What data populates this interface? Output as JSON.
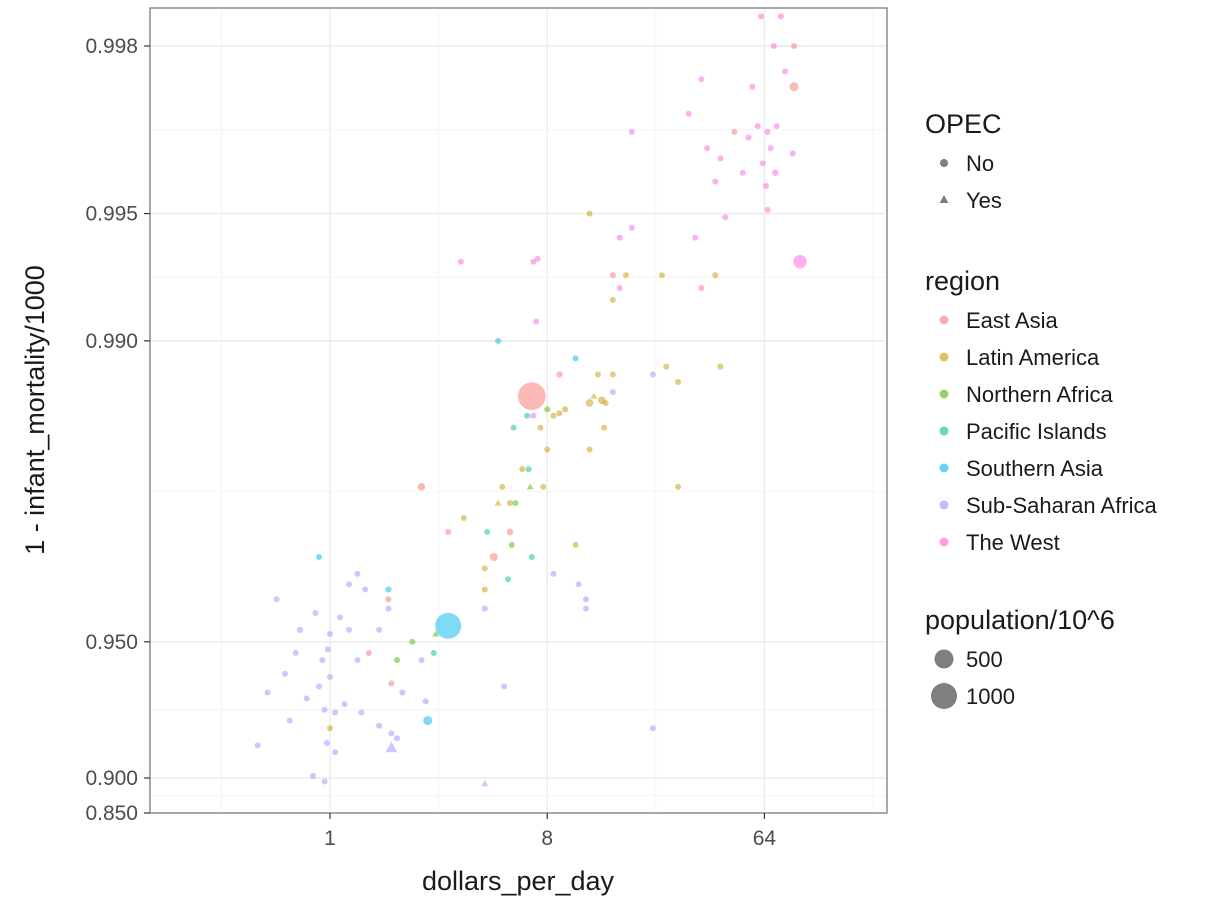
{
  "chart_data": {
    "type": "scatter",
    "title": "",
    "xlabel": "dollars_per_day",
    "ylabel": "1 - infant_mortality/1000",
    "x_scale": "log2",
    "y_scale": "logit",
    "xlim": [
      0.3,
      140
    ],
    "ylim": [
      0.85,
      0.9987
    ],
    "x_ticks": [
      1,
      8,
      64
    ],
    "x_tick_labels": [
      "1",
      "8",
      "64"
    ],
    "y_ticks": [
      0.85,
      0.9,
      0.95,
      0.99,
      0.995,
      0.998
    ],
    "y_tick_labels": [
      "0.850",
      "0.900",
      "0.950",
      "0.990",
      "0.995",
      "0.998"
    ],
    "grid": true,
    "legend_position": "right",
    "legends": {
      "shape": {
        "title": "OPEC",
        "items": [
          "No",
          "Yes"
        ]
      },
      "color": {
        "title": "region",
        "items": [
          {
            "name": "East Asia",
            "color": "#F8766D"
          },
          {
            "name": "Latin America",
            "color": "#C49A00"
          },
          {
            "name": "Northern Africa",
            "color": "#53B400"
          },
          {
            "name": "Pacific Islands",
            "color": "#00C094"
          },
          {
            "name": "Southern Asia",
            "color": "#00B6EB"
          },
          {
            "name": "Sub-Saharan Africa",
            "color": "#A58AFF"
          },
          {
            "name": "The West",
            "color": "#FB61D7"
          }
        ]
      },
      "size": {
        "title": "population/10^6",
        "items": [
          500,
          1000
        ]
      }
    },
    "series": [
      {
        "name": "East Asia",
        "points": [
          {
            "x": 6.9,
            "y": 0.9865,
            "pop": 1200,
            "opec": "No"
          },
          {
            "x": 9.0,
            "y": 0.988,
            "pop": 60,
            "opec": "No"
          },
          {
            "x": 15.0,
            "y": 0.993,
            "pop": 50,
            "opec": "No"
          },
          {
            "x": 48.0,
            "y": 0.9968,
            "pop": 45,
            "opec": "No"
          },
          {
            "x": 85.0,
            "y": 0.9975,
            "pop": 125,
            "opec": "No"
          },
          {
            "x": 2.4,
            "y": 0.978,
            "pop": 90,
            "opec": "No"
          },
          {
            "x": 4.8,
            "y": 0.968,
            "pop": 100,
            "opec": "No"
          },
          {
            "x": 5.6,
            "y": 0.972,
            "pop": 65,
            "opec": "No"
          },
          {
            "x": 3.1,
            "y": 0.972,
            "pop": 20,
            "opec": "No"
          },
          {
            "x": 1.75,
            "y": 0.96,
            "pop": 20,
            "opec": "No"
          },
          {
            "x": 1.45,
            "y": 0.947,
            "pop": 20,
            "opec": "No"
          },
          {
            "x": 1.8,
            "y": 0.938,
            "pop": 20,
            "opec": "No"
          },
          {
            "x": 35.0,
            "y": 0.9925,
            "pop": 20,
            "opec": "No"
          },
          {
            "x": 70.0,
            "y": 0.9985,
            "pop": 20,
            "opec": "No"
          },
          {
            "x": 85.0,
            "y": 0.998,
            "pop": 20,
            "opec": "No"
          },
          {
            "x": 62.0,
            "y": 0.9983,
            "pop": 20,
            "opec": "No"
          }
        ]
      },
      {
        "name": "Latin America",
        "points": [
          {
            "x": 12.0,
            "y": 0.986,
            "pop": 90,
            "opec": "No"
          },
          {
            "x": 13.5,
            "y": 0.9862,
            "pop": 90,
            "opec": "No"
          },
          {
            "x": 8.5,
            "y": 0.985,
            "pop": 60,
            "opec": "No"
          },
          {
            "x": 9.0,
            "y": 0.9852,
            "pop": 20,
            "opec": "No"
          },
          {
            "x": 12.5,
            "y": 0.9865,
            "pop": 20,
            "opec": "Yes"
          },
          {
            "x": 14.0,
            "y": 0.986,
            "pop": 20,
            "opec": "No"
          },
          {
            "x": 13.8,
            "y": 0.984,
            "pop": 20,
            "opec": "No"
          },
          {
            "x": 7.5,
            "y": 0.984,
            "pop": 20,
            "opec": "No"
          },
          {
            "x": 9.5,
            "y": 0.9855,
            "pop": 20,
            "opec": "No"
          },
          {
            "x": 12.0,
            "y": 0.982,
            "pop": 20,
            "opec": "No"
          },
          {
            "x": 28.0,
            "y": 0.9875,
            "pop": 20,
            "opec": "No"
          },
          {
            "x": 25.0,
            "y": 0.9885,
            "pop": 20,
            "opec": "No"
          },
          {
            "x": 13.0,
            "y": 0.988,
            "pop": 20,
            "opec": "No"
          },
          {
            "x": 6.3,
            "y": 0.98,
            "pop": 20,
            "opec": "No"
          },
          {
            "x": 7.7,
            "y": 0.978,
            "pop": 20,
            "opec": "No"
          },
          {
            "x": 5.6,
            "y": 0.976,
            "pop": 20,
            "opec": "No"
          },
          {
            "x": 5.0,
            "y": 0.976,
            "pop": 20,
            "opec": "Yes"
          },
          {
            "x": 3.6,
            "y": 0.974,
            "pop": 20,
            "opec": "No"
          },
          {
            "x": 5.2,
            "y": 0.978,
            "pop": 20,
            "opec": "No"
          },
          {
            "x": 10.5,
            "y": 0.97,
            "pop": 20,
            "opec": "No"
          },
          {
            "x": 4.4,
            "y": 0.966,
            "pop": 20,
            "opec": "No"
          },
          {
            "x": 4.4,
            "y": 0.962,
            "pop": 20,
            "opec": "No"
          },
          {
            "x": 28.0,
            "y": 0.978,
            "pop": 20,
            "opec": "No"
          },
          {
            "x": 1.0,
            "y": 0.922,
            "pop": 20,
            "opec": "No"
          },
          {
            "x": 12.0,
            "y": 0.995,
            "pop": 20,
            "opec": "No"
          },
          {
            "x": 17.0,
            "y": 0.993,
            "pop": 20,
            "opec": "No"
          },
          {
            "x": 24.0,
            "y": 0.993,
            "pop": 20,
            "opec": "No"
          },
          {
            "x": 15.0,
            "y": 0.992,
            "pop": 20,
            "opec": "No"
          },
          {
            "x": 15.0,
            "y": 0.988,
            "pop": 20,
            "opec": "No"
          },
          {
            "x": 40.0,
            "y": 0.993,
            "pop": 20,
            "opec": "No"
          },
          {
            "x": 42.0,
            "y": 0.9885,
            "pop": 20,
            "opec": "No"
          },
          {
            "x": 8.0,
            "y": 0.982,
            "pop": 20,
            "opec": "No"
          }
        ]
      },
      {
        "name": "Northern Africa",
        "points": [
          {
            "x": 8.0,
            "y": 0.9855,
            "pop": 20,
            "opec": "No"
          },
          {
            "x": 5.9,
            "y": 0.976,
            "pop": 60,
            "opec": "No"
          },
          {
            "x": 6.8,
            "y": 0.978,
            "pop": 20,
            "opec": "Yes"
          },
          {
            "x": 5.7,
            "y": 0.97,
            "pop": 45,
            "opec": "No"
          },
          {
            "x": 2.2,
            "y": 0.95,
            "pop": 30,
            "opec": "No"
          },
          {
            "x": 1.9,
            "y": 0.945,
            "pop": 30,
            "opec": "No"
          },
          {
            "x": 2.75,
            "y": 0.952,
            "pop": 20,
            "opec": "Yes"
          }
        ]
      },
      {
        "name": "Pacific Islands",
        "points": [
          {
            "x": 5.8,
            "y": 0.984,
            "pop": 20,
            "opec": "No"
          },
          {
            "x": 6.6,
            "y": 0.985,
            "pop": 20,
            "opec": "No"
          },
          {
            "x": 6.7,
            "y": 0.98,
            "pop": 20,
            "opec": "No"
          },
          {
            "x": 6.9,
            "y": 0.968,
            "pop": 20,
            "opec": "No"
          },
          {
            "x": 4.5,
            "y": 0.972,
            "pop": 20,
            "opec": "No"
          },
          {
            "x": 5.5,
            "y": 0.964,
            "pop": 20,
            "opec": "No"
          },
          {
            "x": 2.7,
            "y": 0.947,
            "pop": 20,
            "opec": "No"
          }
        ]
      },
      {
        "name": "Southern Asia",
        "points": [
          {
            "x": 3.1,
            "y": 0.954,
            "pop": 1050,
            "opec": "No"
          },
          {
            "x": 1.75,
            "y": 0.962,
            "pop": 60,
            "opec": "No"
          },
          {
            "x": 2.55,
            "y": 0.925,
            "pop": 130,
            "opec": "No"
          },
          {
            "x": 0.9,
            "y": 0.968,
            "pop": 25,
            "opec": "No"
          },
          {
            "x": 5.0,
            "y": 0.99,
            "pop": 20,
            "opec": "No"
          },
          {
            "x": 10.5,
            "y": 0.989,
            "pop": 20,
            "opec": "No"
          }
        ]
      },
      {
        "name": "Sub-Saharan Africa",
        "points": [
          {
            "x": 0.5,
            "y": 0.915,
            "pop": 50,
            "opec": "No"
          },
          {
            "x": 0.55,
            "y": 0.935,
            "pop": 20,
            "opec": "No"
          },
          {
            "x": 0.6,
            "y": 0.96,
            "pop": 20,
            "opec": "No"
          },
          {
            "x": 0.65,
            "y": 0.941,
            "pop": 20,
            "opec": "No"
          },
          {
            "x": 0.68,
            "y": 0.925,
            "pop": 20,
            "opec": "No"
          },
          {
            "x": 0.72,
            "y": 0.947,
            "pop": 20,
            "opec": "No"
          },
          {
            "x": 0.75,
            "y": 0.953,
            "pop": 60,
            "opec": "No"
          },
          {
            "x": 0.8,
            "y": 0.933,
            "pop": 20,
            "opec": "No"
          },
          {
            "x": 0.85,
            "y": 0.901,
            "pop": 20,
            "opec": "No"
          },
          {
            "x": 0.87,
            "y": 0.957,
            "pop": 20,
            "opec": "No"
          },
          {
            "x": 0.9,
            "y": 0.937,
            "pop": 20,
            "opec": "No"
          },
          {
            "x": 0.93,
            "y": 0.945,
            "pop": 20,
            "opec": "No"
          },
          {
            "x": 0.95,
            "y": 0.929,
            "pop": 20,
            "opec": "No"
          },
          {
            "x": 0.95,
            "y": 0.895,
            "pop": 20,
            "opec": "No"
          },
          {
            "x": 0.97,
            "y": 0.916,
            "pop": 20,
            "opec": "No"
          },
          {
            "x": 0.98,
            "y": 0.948,
            "pop": 20,
            "opec": "No"
          },
          {
            "x": 1.0,
            "y": 0.952,
            "pop": 20,
            "opec": "No"
          },
          {
            "x": 1.0,
            "y": 0.94,
            "pop": 20,
            "opec": "No"
          },
          {
            "x": 1.05,
            "y": 0.928,
            "pop": 20,
            "opec": "No"
          },
          {
            "x": 1.05,
            "y": 0.912,
            "pop": 20,
            "opec": "No"
          },
          {
            "x": 1.1,
            "y": 0.956,
            "pop": 20,
            "opec": "No"
          },
          {
            "x": 1.15,
            "y": 0.931,
            "pop": 20,
            "opec": "No"
          },
          {
            "x": 1.2,
            "y": 0.963,
            "pop": 20,
            "opec": "No"
          },
          {
            "x": 1.3,
            "y": 0.965,
            "pop": 35,
            "opec": "No"
          },
          {
            "x": 1.4,
            "y": 0.962,
            "pop": 35,
            "opec": "No"
          },
          {
            "x": 1.2,
            "y": 0.953,
            "pop": 20,
            "opec": "No"
          },
          {
            "x": 1.3,
            "y": 0.945,
            "pop": 20,
            "opec": "No"
          },
          {
            "x": 1.35,
            "y": 0.928,
            "pop": 20,
            "opec": "No"
          },
          {
            "x": 1.6,
            "y": 0.923,
            "pop": 20,
            "opec": "No"
          },
          {
            "x": 1.6,
            "y": 0.953,
            "pop": 20,
            "opec": "No"
          },
          {
            "x": 1.75,
            "y": 0.958,
            "pop": 20,
            "opec": "No"
          },
          {
            "x": 1.8,
            "y": 0.92,
            "pop": 20,
            "opec": "No"
          },
          {
            "x": 1.8,
            "y": 0.914,
            "pop": 170,
            "opec": "Yes"
          },
          {
            "x": 1.9,
            "y": 0.918,
            "pop": 20,
            "opec": "No"
          },
          {
            "x": 2.0,
            "y": 0.935,
            "pop": 20,
            "opec": "No"
          },
          {
            "x": 2.5,
            "y": 0.932,
            "pop": 20,
            "opec": "No"
          },
          {
            "x": 2.4,
            "y": 0.945,
            "pop": 20,
            "opec": "No"
          },
          {
            "x": 4.4,
            "y": 0.958,
            "pop": 20,
            "opec": "No"
          },
          {
            "x": 4.4,
            "y": 0.892,
            "pop": 20,
            "opec": "Yes"
          },
          {
            "x": 5.3,
            "y": 0.937,
            "pop": 20,
            "opec": "No"
          },
          {
            "x": 8.5,
            "y": 0.965,
            "pop": 20,
            "opec": "No"
          },
          {
            "x": 10.8,
            "y": 0.963,
            "pop": 40,
            "opec": "No"
          },
          {
            "x": 11.6,
            "y": 0.96,
            "pop": 20,
            "opec": "No"
          },
          {
            "x": 11.6,
            "y": 0.958,
            "pop": 20,
            "opec": "No"
          },
          {
            "x": 22.0,
            "y": 0.922,
            "pop": 20,
            "opec": "No"
          },
          {
            "x": 22.0,
            "y": 0.988,
            "pop": 20,
            "opec": "No"
          },
          {
            "x": 15.0,
            "y": 0.9868,
            "pop": 20,
            "opec": "No"
          }
        ]
      },
      {
        "name": "The West",
        "points": [
          {
            "x": 90.0,
            "y": 0.9935,
            "pop": 280,
            "opec": "No"
          },
          {
            "x": 60.0,
            "y": 0.9969,
            "pop": 20,
            "opec": "No"
          },
          {
            "x": 66.0,
            "y": 0.9968,
            "pop": 60,
            "opec": "No"
          },
          {
            "x": 63.0,
            "y": 0.9962,
            "pop": 20,
            "opec": "No"
          },
          {
            "x": 68.0,
            "y": 0.9965,
            "pop": 20,
            "opec": "No"
          },
          {
            "x": 71.0,
            "y": 0.996,
            "pop": 65,
            "opec": "No"
          },
          {
            "x": 65.0,
            "y": 0.9957,
            "pop": 20,
            "opec": "No"
          },
          {
            "x": 66.0,
            "y": 0.9951,
            "pop": 40,
            "opec": "No"
          },
          {
            "x": 52.0,
            "y": 0.996,
            "pop": 20,
            "opec": "No"
          },
          {
            "x": 37.0,
            "y": 0.9965,
            "pop": 20,
            "opec": "No"
          },
          {
            "x": 40.0,
            "y": 0.9958,
            "pop": 20,
            "opec": "No"
          },
          {
            "x": 42.0,
            "y": 0.9963,
            "pop": 40,
            "opec": "No"
          },
          {
            "x": 44.0,
            "y": 0.9949,
            "pop": 20,
            "opec": "No"
          },
          {
            "x": 31.0,
            "y": 0.9971,
            "pop": 20,
            "opec": "No"
          },
          {
            "x": 35.0,
            "y": 0.9976,
            "pop": 20,
            "opec": "No"
          },
          {
            "x": 55.0,
            "y": 0.9967,
            "pop": 20,
            "opec": "No"
          },
          {
            "x": 57.0,
            "y": 0.9975,
            "pop": 20,
            "opec": "No"
          },
          {
            "x": 84.0,
            "y": 0.9964,
            "pop": 20,
            "opec": "No"
          },
          {
            "x": 78.0,
            "y": 0.9977,
            "pop": 20,
            "opec": "No"
          },
          {
            "x": 72.0,
            "y": 0.9969,
            "pop": 20,
            "opec": "No"
          },
          {
            "x": 70.0,
            "y": 0.998,
            "pop": 20,
            "opec": "No"
          },
          {
            "x": 75.0,
            "y": 0.9983,
            "pop": 20,
            "opec": "No"
          },
          {
            "x": 100.0,
            "y": 0.9986,
            "pop": 20,
            "opec": "No"
          },
          {
            "x": 33.0,
            "y": 0.9943,
            "pop": 20,
            "opec": "No"
          },
          {
            "x": 16.0,
            "y": 0.9943,
            "pop": 20,
            "opec": "No"
          },
          {
            "x": 18.0,
            "y": 0.9946,
            "pop": 20,
            "opec": "No"
          },
          {
            "x": 18.0,
            "y": 0.9968,
            "pop": 20,
            "opec": "No"
          },
          {
            "x": 16.0,
            "y": 0.9925,
            "pop": 20,
            "opec": "No"
          },
          {
            "x": 7.0,
            "y": 0.9935,
            "pop": 20,
            "opec": "No"
          },
          {
            "x": 7.3,
            "y": 0.9936,
            "pop": 20,
            "opec": "No"
          },
          {
            "x": 3.5,
            "y": 0.9935,
            "pop": 20,
            "opec": "No"
          },
          {
            "x": 7.2,
            "y": 0.991,
            "pop": 20,
            "opec": "No"
          },
          {
            "x": 7.0,
            "y": 0.985,
            "pop": 20,
            "opec": "No"
          }
        ]
      }
    ]
  }
}
